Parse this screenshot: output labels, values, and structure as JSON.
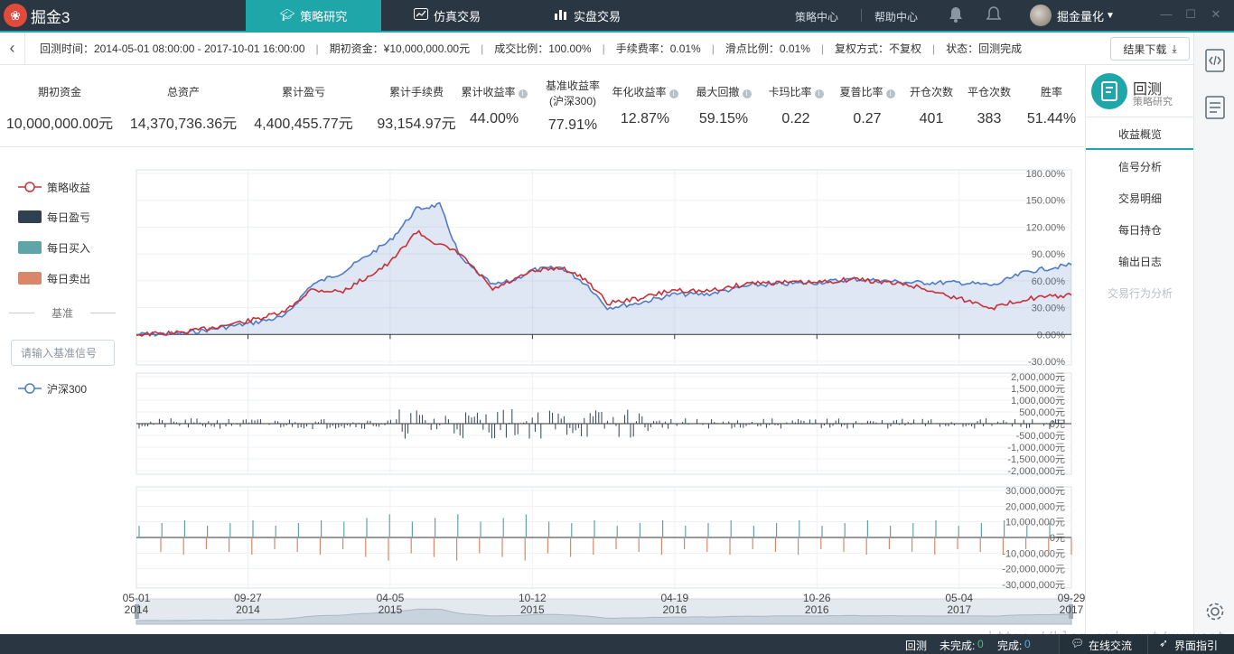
{
  "app": {
    "name": "掘金3"
  },
  "nav": {
    "research": "策略研究",
    "paper_trading": "仿真交易",
    "live_trading": "实盘交易",
    "strategy_center": "策略中心",
    "help_center": "帮助中心",
    "user_name": "掘金量化"
  },
  "info": {
    "backtest_time": "回测时间：2014-05-01 08:00:00 - 2017-10-01 16:00:00",
    "initial_capital": "期初资金：¥10,000,000.00元",
    "fill_ratio": "成交比例：100.00%",
    "commission": "手续费率：0.01%",
    "slippage": "滑点比例：0.01%",
    "adjust": "复权方式：不复权",
    "status": "状态：回测完成",
    "download": "结果下载"
  },
  "metrics": [
    {
      "label": "期初资金",
      "value": "10,000,000.00元"
    },
    {
      "label": "总资产",
      "value": "14,370,736.36元"
    },
    {
      "label": "累计盈亏",
      "value": "4,400,455.77元"
    },
    {
      "label": "累计手续费",
      "value": "93,154.97元"
    },
    {
      "label": "累计收益率",
      "value": "44.00%"
    },
    {
      "label": "基准收益率",
      "label2": "(沪深300)",
      "value": "77.91%"
    },
    {
      "label": "年化收益率",
      "value": "12.87%"
    },
    {
      "label": "最大回撤",
      "value": "59.15%"
    },
    {
      "label": "卡玛比率",
      "value": "0.22"
    },
    {
      "label": "夏普比率",
      "value": "0.27"
    },
    {
      "label": "开仓次数",
      "value": "401"
    },
    {
      "label": "平仓次数",
      "value": "383"
    },
    {
      "label": "胜率",
      "value": "51.44%"
    }
  ],
  "side_panel": {
    "title": "回测",
    "subtitle": "策略研究",
    "items": [
      "收益概览",
      "信号分析",
      "交易明细",
      "每日持仓",
      "输出日志",
      "交易行为分析"
    ]
  },
  "legend": {
    "strategy": "策略收益",
    "daily_pnl": "每日盈亏",
    "daily_buy": "每日买入",
    "daily_sell": "每日卖出",
    "baseline_title": "基准",
    "baseline_placeholder": "请输入基准信号",
    "benchmark": "沪深300"
  },
  "colors": {
    "accent": "#1fa6a9",
    "topbar": "#2a3642",
    "strategy_line": "#c8313a",
    "benchmark_line": "#4f7cc8",
    "pnl_bar": "#2f4052",
    "buy_bar": "#5fa5a8",
    "sell_bar": "#d8876a"
  },
  "chart_data": [
    {
      "type": "line",
      "y_unit": "%",
      "ylim": [
        -30,
        180
      ],
      "yticks": [
        "180.00%",
        "150.00%",
        "120.00%",
        "90.00%",
        "60.00%",
        "30.00%",
        "0.00%",
        "-30.00%"
      ],
      "x": [
        "2014-05-01",
        "2014-07-01",
        "2014-09-27",
        "2014-11-15",
        "2014-12-20",
        "2015-02-01",
        "2015-04-05",
        "2015-05-10",
        "2015-06-10",
        "2015-07-08",
        "2015-08-20",
        "2015-09-15",
        "2015-10-12",
        "2015-11-20",
        "2015-12-25",
        "2016-01-20",
        "2016-03-01",
        "2016-04-19",
        "2016-06-01",
        "2016-08-01",
        "2016-10-26",
        "2016-12-15",
        "2017-03-01",
        "2017-05-04",
        "2017-06-20",
        "2017-08-01",
        "2017-10-01"
      ],
      "series": [
        {
          "name": "策略收益",
          "values": [
            0,
            2,
            15,
            25,
            50,
            48,
            80,
            115,
            100,
            90,
            50,
            60,
            70,
            75,
            60,
            35,
            40,
            50,
            48,
            58,
            58,
            62,
            55,
            40,
            30,
            40,
            44
          ]
        },
        {
          "name": "沪深300",
          "values": [
            0,
            1,
            12,
            20,
            55,
            70,
            105,
            140,
            145,
            85,
            55,
            60,
            72,
            75,
            55,
            30,
            35,
            45,
            45,
            55,
            58,
            62,
            58,
            58,
            55,
            70,
            78
          ]
        }
      ]
    },
    {
      "type": "bar",
      "y_unit": "元",
      "ylim": [
        -2000000,
        2000000
      ],
      "yticks": [
        "2,000,000元",
        "1,500,000元",
        "1,000,000元",
        "500,000元",
        "0元",
        "-500,000元",
        "-1,000,000元",
        "-1,500,000元",
        "-2,000,000元"
      ],
      "series": [
        {
          "name": "每日盈亏"
        }
      ]
    },
    {
      "type": "bar",
      "y_unit": "元",
      "ylim": [
        -30000000,
        30000000
      ],
      "yticks": [
        "30,000,000元",
        "20,000,000元",
        "10,000,000元",
        "0元",
        "-10,000,000元",
        "-20,000,000元",
        "-30,000,000元"
      ],
      "series": [
        {
          "name": "每日买入"
        },
        {
          "name": "每日卖出"
        }
      ]
    }
  ],
  "xaxis": {
    "labels": [
      {
        "date": "05-01",
        "year": "2014"
      },
      {
        "date": "09-27",
        "year": "2014"
      },
      {
        "date": "04-05",
        "year": "2015"
      },
      {
        "date": "10-12",
        "year": "2015"
      },
      {
        "date": "04-19",
        "year": "2016"
      },
      {
        "date": "10-26",
        "year": "2016"
      },
      {
        "date": "05-04",
        "year": "2017"
      },
      {
        "date": "09-29",
        "year": "2017"
      }
    ]
  },
  "status_bar": {
    "mode": "回测",
    "pending_label": "未完成:",
    "pending_count": "0",
    "done_label": "完成:",
    "done_count": "0",
    "chat": "在线交流",
    "guide": "界面指引"
  },
  "watermark": "https://blog.csdn.net/myquant"
}
